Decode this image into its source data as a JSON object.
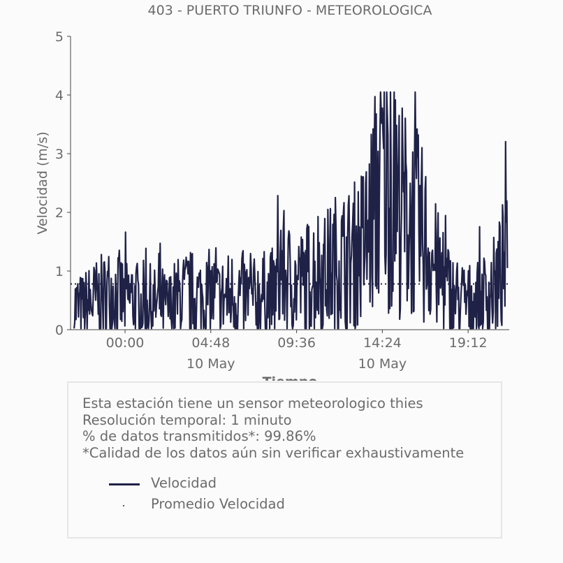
{
  "chart_data": {
    "type": "line",
    "title": "403 - PUERTO TRIUNFO - METEOROLOGICA",
    "xlabel": "Tiempo",
    "ylabel": "Velocidad (m/s)",
    "ylim": [
      0,
      5
    ],
    "y_ticks": [
      "0",
      "1",
      "2",
      "3",
      "4",
      "5"
    ],
    "x_ticks": [
      {
        "time": "00:00",
        "date": ""
      },
      {
        "time": "04:48",
        "date": "10 May"
      },
      {
        "time": "09:36",
        "date": ""
      },
      {
        "time": "14:24",
        "date": "10 May"
      },
      {
        "time": "19:12",
        "date": ""
      }
    ],
    "series": [
      {
        "name": "Velocidad",
        "color": "#1f2147",
        "x_hours": [
          -2.8,
          -2.4,
          -2.0,
          -1.6,
          -1.2,
          -0.8,
          -0.4,
          0.0,
          0.4,
          0.8,
          1.2,
          1.6,
          2.0,
          2.4,
          2.8,
          3.2,
          3.6,
          4.0,
          4.4,
          4.8,
          5.2,
          5.6,
          6.0,
          6.4,
          6.8,
          7.2,
          7.6,
          8.0,
          8.4,
          8.8,
          9.2,
          9.6,
          10.0,
          10.4,
          10.8,
          11.2,
          11.6,
          12.0,
          12.4,
          12.8,
          13.2,
          13.6,
          14.0,
          14.4,
          14.8,
          15.2,
          15.6,
          16.0,
          16.4,
          16.8,
          17.2,
          17.6,
          18.0,
          18.4,
          18.8,
          19.2,
          19.6,
          20.0,
          20.4,
          20.8,
          21.2
        ],
        "values": [
          0.4,
          0.35,
          0.45,
          0.5,
          0.55,
          0.65,
          0.6,
          0.5,
          0.55,
          0.45,
          0.5,
          0.4,
          0.45,
          0.35,
          0.5,
          0.55,
          0.6,
          0.55,
          0.55,
          0.6,
          0.5,
          0.55,
          0.6,
          0.6,
          0.55,
          0.5,
          0.6,
          0.55,
          0.65,
          1.0,
          0.85,
          0.75,
          0.8,
          0.95,
          1.05,
          0.95,
          1.1,
          1.2,
          1.15,
          1.25,
          1.4,
          1.6,
          2.2,
          2.7,
          2.5,
          2.2,
          2.0,
          1.9,
          1.75,
          1.5,
          1.2,
          0.9,
          0.7,
          0.55,
          0.5,
          0.45,
          0.5,
          0.55,
          0.6,
          0.8,
          1.1
        ]
      },
      {
        "name": "Promedio Velocidad",
        "color": "#1f2147",
        "value": 0.78
      }
    ],
    "legend": [
      "Velocidad",
      "Promedio Velocidad"
    ],
    "legend_placement": "bottom box"
  },
  "info": {
    "line1": "Esta estación tiene un sensor meteorologico thies",
    "line2": "Resolución temporal: 1 minuto",
    "line3": "% de datos transmitidos*: 99.86%",
    "line4": "*Calidad de los datos aún sin verificar exhaustivamente"
  }
}
